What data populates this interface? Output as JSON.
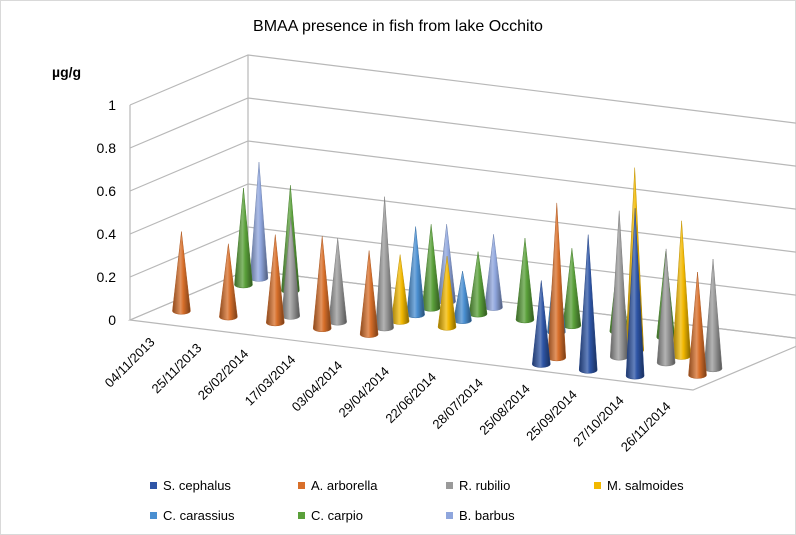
{
  "chart_data": {
    "type": "bar",
    "subtype": "3d-cone",
    "title": "BMAA presence in fish from lake Occhito",
    "ylabel": "µg/g",
    "ylim": [
      0,
      1
    ],
    "yticks": [
      0,
      0.2,
      0.4,
      0.6,
      0.8,
      1
    ],
    "ytick_labels": [
      "0",
      "0.2",
      "0.4",
      "0.6",
      "0.8",
      "1"
    ],
    "categories": [
      "04/11/2013",
      "25/11/2013",
      "26/02/2014",
      "17/03/2014",
      "03/04/2014",
      "29/04/2014",
      "22/06/2014",
      "28/07/2014",
      "25/08/2014",
      "25/09/2014",
      "27/10/2014",
      "26/11/2014"
    ],
    "legend_position": "bottom",
    "series": [
      {
        "name": "S. cephalus",
        "color": "#2e55a6",
        "values": [
          null,
          null,
          null,
          null,
          null,
          null,
          null,
          null,
          0.39,
          0.63,
          0.78,
          null
        ]
      },
      {
        "name": "A. arborella",
        "color": "#d86f2a",
        "values": [
          0.37,
          0.34,
          0.41,
          0.43,
          0.39,
          null,
          null,
          null,
          0.72,
          null,
          null,
          0.48
        ]
      },
      {
        "name": "R. rubilio",
        "color": "#9a9a9a",
        "values": [
          null,
          null,
          0.46,
          0.39,
          0.61,
          null,
          null,
          null,
          null,
          0.68,
          0.53,
          0.51
        ]
      },
      {
        "name": "M. salmoides",
        "color": "#f2b800",
        "values": [
          null,
          null,
          null,
          null,
          0.31,
          0.33,
          null,
          null,
          null,
          0.85,
          0.63,
          null
        ]
      },
      {
        "name": "C. carassius",
        "color": "#4a8fd1",
        "values": [
          null,
          null,
          null,
          null,
          0.41,
          0.23,
          null,
          0.41,
          null,
          null,
          null,
          null
        ]
      },
      {
        "name": "C. carpio",
        "color": "#5aa03a",
        "values": [
          0.45,
          0.49,
          null,
          null,
          0.39,
          0.29,
          0.38,
          0.36,
          0.38,
          0.4,
          null,
          null
        ]
      },
      {
        "name": "B. barbus",
        "color": "#8fa6dd",
        "values": [
          0.54,
          null,
          null,
          null,
          0.36,
          0.34,
          null,
          null,
          null,
          null,
          null,
          null
        ]
      }
    ]
  }
}
